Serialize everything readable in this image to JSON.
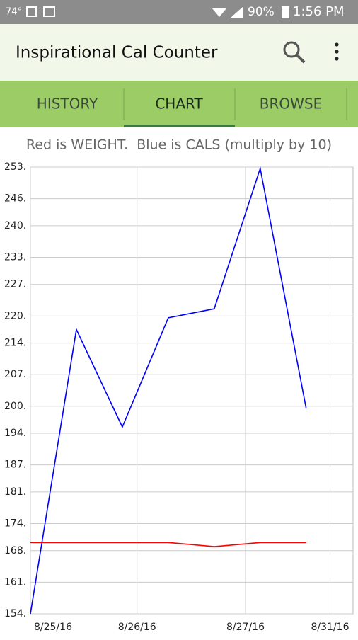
{
  "status_bar": {
    "temperature": "74°",
    "battery": "90%",
    "time": "1:56 PM"
  },
  "app_bar": {
    "title": "Inspirational Cal Counter"
  },
  "tabs": [
    "HISTORY",
    "CHART",
    "BROWSE"
  ],
  "chart_data": {
    "type": "line",
    "title": "Red is WEIGHT.  Blue is CALS (multiply by 10)",
    "x": [
      0,
      1,
      2,
      3,
      4,
      5,
      6
    ],
    "series": [
      {
        "color": "#0000ff",
        "values": [
          154,
          217,
          195.4,
          219.6,
          221.6,
          252.7,
          199.5
        ]
      },
      {
        "color": "#ff0000",
        "values": [
          169.8,
          169.8,
          169.8,
          169.8,
          168.9,
          169.8,
          169.8
        ]
      }
    ],
    "xlim": [
      0,
      7.02
    ],
    "xticks": [
      {
        "value": 0,
        "label": "8/25/16"
      },
      {
        "value": 2.32,
        "label": "8/26/16"
      },
      {
        "value": 4.68,
        "label": "8/27/16"
      },
      {
        "value": 6.52,
        "label": "8/31/16"
      }
    ],
    "ylim": [
      154,
      253
    ],
    "yticks": [
      {
        "value": 253,
        "label": "253."
      },
      {
        "value": 246,
        "label": "246."
      },
      {
        "value": 240,
        "label": "240."
      },
      {
        "value": 233,
        "label": "233."
      },
      {
        "value": 227,
        "label": "227."
      },
      {
        "value": 220,
        "label": "220."
      },
      {
        "value": 214,
        "label": "214."
      },
      {
        "value": 207,
        "label": "207."
      },
      {
        "value": 200,
        "label": "200."
      },
      {
        "value": 194,
        "label": "194."
      },
      {
        "value": 187,
        "label": "187."
      },
      {
        "value": 181,
        "label": "181."
      },
      {
        "value": 174,
        "label": "174."
      },
      {
        "value": 168,
        "label": "168."
      },
      {
        "value": 161,
        "label": "161."
      },
      {
        "value": 154,
        "label": "154."
      }
    ],
    "grid": true
  }
}
